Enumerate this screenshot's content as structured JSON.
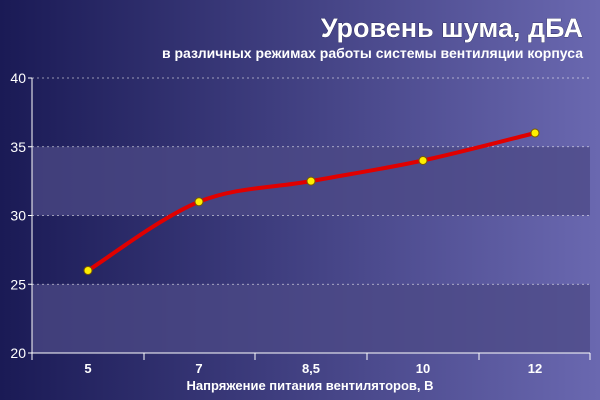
{
  "chart_data": {
    "type": "line",
    "title": "Уровень шума, дБА",
    "subtitle": "в различных режимах работы системы вентиляции корпуса",
    "xlabel": "Напряжение питания вентиляторов, В",
    "ylabel": "",
    "categories": [
      "5",
      "7",
      "8,5",
      "10",
      "12"
    ],
    "series": [
      {
        "values": [
          26,
          31,
          32.5,
          34,
          36
        ]
      }
    ],
    "ylim": [
      20,
      40
    ],
    "yticks": [
      20,
      25,
      30,
      35,
      40
    ],
    "grid": true,
    "legend": "none",
    "colors": {
      "background_start": "#1a1a55",
      "background_end": "#6a68b0",
      "band": "#4c4a86",
      "line": "#e00000",
      "marker_fill": "#ffee00",
      "marker_stroke": "#7a5a00",
      "text": "#ffffff"
    }
  }
}
